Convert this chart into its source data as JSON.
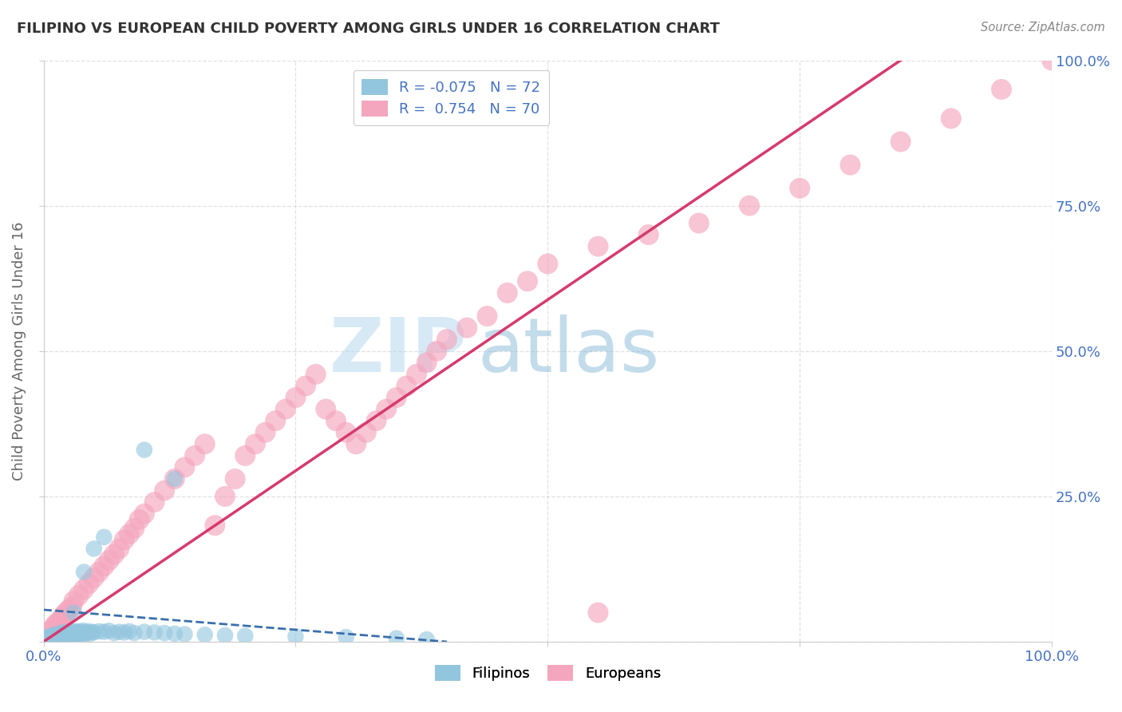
{
  "title": "FILIPINO VS EUROPEAN CHILD POVERTY AMONG GIRLS UNDER 16 CORRELATION CHART",
  "source": "Source: ZipAtlas.com",
  "ylabel": "Child Poverty Among Girls Under 16",
  "r_filipino": -0.075,
  "n_filipino": 72,
  "r_european": 0.754,
  "n_european": 70,
  "filipino_color": "#92c5de",
  "european_color": "#f4a6be",
  "filipino_line_color": "#3a6fad",
  "european_line_color": "#d63a6e",
  "background_color": "#ffffff",
  "watermark_zip": "ZIP",
  "watermark_atlas": "atlas",
  "grid_color": "#cccccc",
  "tick_color": "#4472c4",
  "ylabel_color": "#666666",
  "title_color": "#333333",
  "source_color": "#888888",
  "legend_r_color": "#4472c4",
  "legend_n_color": "#4472c4",
  "xlim": [
    0,
    1.0
  ],
  "ylim": [
    0,
    1.0
  ],
  "xticks": [
    0,
    0.25,
    0.5,
    0.75,
    1.0
  ],
  "yticks": [
    0,
    0.25,
    0.5,
    0.75,
    1.0
  ],
  "xtick_labels": [
    "0.0%",
    "",
    "",
    "",
    "100.0%"
  ],
  "ytick_labels": [
    "",
    "25.0%",
    "50.0%",
    "75.0%",
    "100.0%"
  ],
  "fil_scatter_x": [
    0.001,
    0.002,
    0.003,
    0.004,
    0.005,
    0.006,
    0.007,
    0.008,
    0.009,
    0.01,
    0.01,
    0.011,
    0.012,
    0.013,
    0.014,
    0.015,
    0.016,
    0.017,
    0.018,
    0.019,
    0.02,
    0.021,
    0.022,
    0.023,
    0.024,
    0.025,
    0.026,
    0.027,
    0.028,
    0.029,
    0.03,
    0.031,
    0.032,
    0.033,
    0.034,
    0.035,
    0.036,
    0.037,
    0.038,
    0.039,
    0.04,
    0.042,
    0.044,
    0.046,
    0.048,
    0.05,
    0.055,
    0.06,
    0.065,
    0.07,
    0.075,
    0.08,
    0.085,
    0.09,
    0.1,
    0.11,
    0.12,
    0.13,
    0.14,
    0.16,
    0.18,
    0.2,
    0.25,
    0.3,
    0.35,
    0.38,
    0.13,
    0.1,
    0.06,
    0.05,
    0.04,
    0.03
  ],
  "fil_scatter_y": [
    0.003,
    0.005,
    0.007,
    0.004,
    0.006,
    0.008,
    0.01,
    0.003,
    0.005,
    0.008,
    0.01,
    0.012,
    0.006,
    0.009,
    0.011,
    0.014,
    0.007,
    0.01,
    0.013,
    0.016,
    0.008,
    0.011,
    0.014,
    0.017,
    0.01,
    0.013,
    0.016,
    0.012,
    0.015,
    0.018,
    0.009,
    0.012,
    0.015,
    0.018,
    0.011,
    0.014,
    0.017,
    0.013,
    0.016,
    0.019,
    0.012,
    0.015,
    0.018,
    0.014,
    0.017,
    0.016,
    0.018,
    0.017,
    0.019,
    0.015,
    0.017,
    0.016,
    0.018,
    0.015,
    0.017,
    0.016,
    0.015,
    0.014,
    0.013,
    0.012,
    0.011,
    0.01,
    0.009,
    0.008,
    0.006,
    0.004,
    0.28,
    0.33,
    0.18,
    0.16,
    0.12,
    0.05
  ],
  "eur_scatter_x": [
    0.008,
    0.01,
    0.012,
    0.015,
    0.018,
    0.02,
    0.022,
    0.025,
    0.028,
    0.03,
    0.035,
    0.04,
    0.045,
    0.05,
    0.055,
    0.06,
    0.065,
    0.07,
    0.075,
    0.08,
    0.085,
    0.09,
    0.095,
    0.1,
    0.11,
    0.12,
    0.13,
    0.14,
    0.15,
    0.16,
    0.17,
    0.18,
    0.19,
    0.2,
    0.21,
    0.22,
    0.23,
    0.24,
    0.25,
    0.26,
    0.27,
    0.28,
    0.29,
    0.3,
    0.31,
    0.32,
    0.33,
    0.34,
    0.35,
    0.36,
    0.37,
    0.38,
    0.39,
    0.4,
    0.42,
    0.44,
    0.46,
    0.48,
    0.5,
    0.55,
    0.6,
    0.65,
    0.7,
    0.75,
    0.8,
    0.85,
    0.9,
    0.95,
    1.0,
    0.55
  ],
  "eur_scatter_y": [
    0.02,
    0.025,
    0.03,
    0.035,
    0.04,
    0.045,
    0.05,
    0.055,
    0.06,
    0.07,
    0.08,
    0.09,
    0.1,
    0.11,
    0.12,
    0.13,
    0.14,
    0.15,
    0.16,
    0.175,
    0.185,
    0.195,
    0.21,
    0.22,
    0.24,
    0.26,
    0.28,
    0.3,
    0.32,
    0.34,
    0.2,
    0.25,
    0.28,
    0.32,
    0.34,
    0.36,
    0.38,
    0.4,
    0.42,
    0.44,
    0.46,
    0.4,
    0.38,
    0.36,
    0.34,
    0.36,
    0.38,
    0.4,
    0.42,
    0.44,
    0.46,
    0.48,
    0.5,
    0.52,
    0.54,
    0.56,
    0.6,
    0.62,
    0.65,
    0.68,
    0.7,
    0.72,
    0.75,
    0.78,
    0.82,
    0.86,
    0.9,
    0.95,
    1.0,
    0.05
  ],
  "fil_line_x": [
    0.0,
    0.4
  ],
  "fil_line_y": [
    0.055,
    0.0
  ],
  "eur_line_x": [
    0.0,
    0.85
  ],
  "eur_line_y": [
    0.0,
    1.0
  ]
}
